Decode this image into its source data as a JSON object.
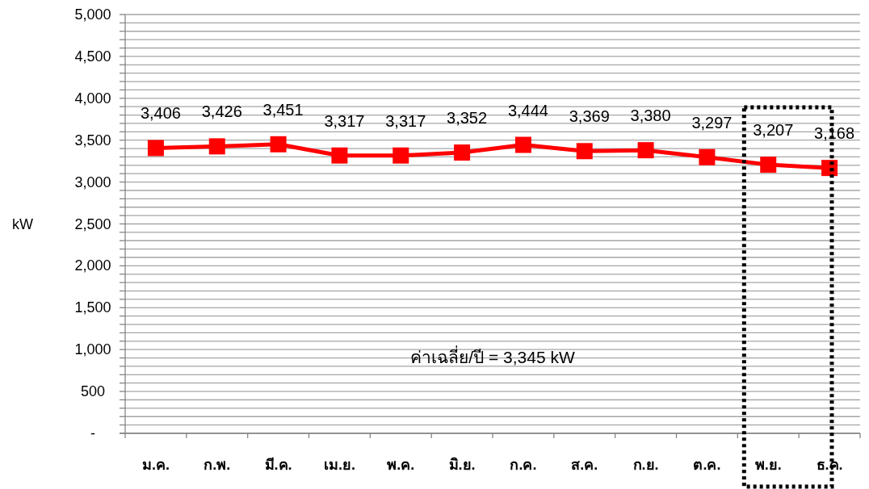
{
  "chart_data": {
    "type": "line",
    "ylabel": "kW",
    "categories": [
      "ม.ค.",
      "ก.พ.",
      "มี.ค.",
      "เม.ย.",
      "พ.ค.",
      "มิ.ย.",
      "ก.ค.",
      "ส.ค.",
      "ก.ย.",
      "ต.ค.",
      "พ.ย.",
      "ธ.ค."
    ],
    "series": [
      {
        "color": "#ff0000",
        "values": [
          3406,
          3426,
          3451,
          3317,
          3317,
          3352,
          3444,
          3369,
          3380,
          3297,
          3207,
          3168
        ]
      }
    ],
    "ylim": [
      0,
      5000
    ],
    "yticks": [
      {
        "value": 0,
        "label": "-"
      },
      {
        "value": 100,
        "label": null
      },
      {
        "value": 200,
        "label": null
      },
      {
        "value": 300,
        "label": null
      },
      {
        "value": 400,
        "label": null
      },
      {
        "value": 500,
        "label": "500"
      },
      {
        "value": 600,
        "label": null
      },
      {
        "value": 700,
        "label": null
      },
      {
        "value": 800,
        "label": null
      },
      {
        "value": 900,
        "label": null
      },
      {
        "value": 1000,
        "label": "1,000"
      },
      {
        "value": 1100,
        "label": null
      },
      {
        "value": 1200,
        "label": null
      },
      {
        "value": 1300,
        "label": null
      },
      {
        "value": 1400,
        "label": null
      },
      {
        "value": 1500,
        "label": "1,500"
      },
      {
        "value": 1600,
        "label": null
      },
      {
        "value": 1700,
        "label": null
      },
      {
        "value": 1800,
        "label": null
      },
      {
        "value": 1900,
        "label": null
      },
      {
        "value": 2000,
        "label": "2,000"
      },
      {
        "value": 2100,
        "label": null
      },
      {
        "value": 2200,
        "label": null
      },
      {
        "value": 2300,
        "label": null
      },
      {
        "value": 2400,
        "label": null
      },
      {
        "value": 2500,
        "label": "2,500"
      },
      {
        "value": 2600,
        "label": null
      },
      {
        "value": 2700,
        "label": null
      },
      {
        "value": 2800,
        "label": null
      },
      {
        "value": 2900,
        "label": null
      },
      {
        "value": 3000,
        "label": "3,000"
      },
      {
        "value": 3100,
        "label": null
      },
      {
        "value": 3200,
        "label": null
      },
      {
        "value": 3300,
        "label": null
      },
      {
        "value": 3400,
        "label": null
      },
      {
        "value": 3500,
        "label": "3,500"
      },
      {
        "value": 3600,
        "label": null
      },
      {
        "value": 3700,
        "label": null
      },
      {
        "value": 3800,
        "label": null
      },
      {
        "value": 3900,
        "label": null
      },
      {
        "value": 4000,
        "label": "4,000"
      },
      {
        "value": 4100,
        "label": null
      },
      {
        "value": 4200,
        "label": null
      },
      {
        "value": 4300,
        "label": null
      },
      {
        "value": 4400,
        "label": null
      },
      {
        "value": 4500,
        "label": "4,500"
      },
      {
        "value": 4600,
        "label": null
      },
      {
        "value": 4700,
        "label": null
      },
      {
        "value": 4800,
        "label": null
      },
      {
        "value": 4900,
        "label": null
      },
      {
        "value": 5000,
        "label": "5,000"
      }
    ],
    "grid": true,
    "marker": "square",
    "line_style": "solid",
    "value_labels": [
      "3,406",
      "3,426",
      "3,451",
      "3,317",
      "3,317",
      "3,352",
      "3,444",
      "3,369",
      "3,380",
      "3,297",
      "3,207",
      "3,168"
    ],
    "annotations": [
      "ค่าเฉลี่ย/ปี = 3,345 kW"
    ]
  }
}
